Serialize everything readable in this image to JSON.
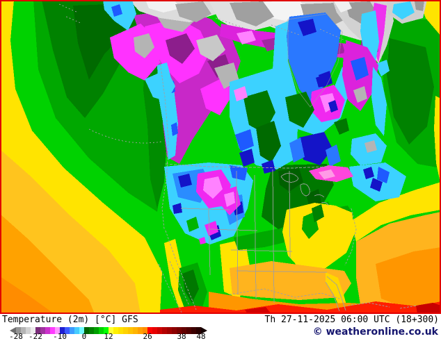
{
  "map": {
    "description": "GFS 2m temperature forecast map of North America",
    "palette": {
      "ocean_green": "#00d200",
      "ocean_green_medium": "#00a800",
      "ocean_green_dark": "#007800",
      "warm_yellow": "#ffe400",
      "warm_orange": "#ffa200",
      "hot_red": "#ff1e00",
      "cold_cyan": "#3cd2ff",
      "cold_blue": "#2a78ff",
      "cold_navy": "#1414c8",
      "frigid_magenta": "#f028f0",
      "frigid_purple": "#c828c8",
      "arctic_gray": "#d2d2d2",
      "border_gray": "#a0a0a0",
      "frame_red": "#e10000"
    }
  },
  "legend": {
    "title": "Temperature (2m) [°C] GFS",
    "unit": "°C",
    "arrow_left_color": "#6e6e6e",
    "arrow_right_color": "#140000",
    "ticks": [
      {
        "label": "-28",
        "pos": 0.0
      },
      {
        "label": "-22",
        "pos": 0.105
      },
      {
        "label": "-10",
        "pos": 0.237
      },
      {
        "label": "0",
        "pos": 0.368
      },
      {
        "label": "12",
        "pos": 0.5
      },
      {
        "label": "26",
        "pos": 0.711
      },
      {
        "label": "38",
        "pos": 0.895
      },
      {
        "label": "48",
        "pos": 1.0
      }
    ],
    "segments": [
      "#969696",
      "#b4b4b4",
      "#d2d2d2",
      "#ececec",
      "#7a2d7a",
      "#a032a0",
      "#cc32cc",
      "#ff3cff",
      "#ff96ff",
      "#1e1ed2",
      "#3c5aff",
      "#3c9cff",
      "#46ccff",
      "#6efaff",
      "#006400",
      "#008000",
      "#00a000",
      "#00d200",
      "#00ff00",
      "#ffff32",
      "#fff000",
      "#ffe100",
      "#ffd200",
      "#ffc300",
      "#ffb400",
      "#ffa000",
      "#ff8c00",
      "#ff0000",
      "#e60000",
      "#cd0000",
      "#b40000",
      "#a00000",
      "#8c0000",
      "#780000",
      "#640000",
      "#500000",
      "#3c0000",
      "#280000"
    ]
  },
  "footer": {
    "timestamp": "Th 27-11-2025 06:00 UTC (18+300)",
    "copyright": "© weatheronline.co.uk"
  }
}
